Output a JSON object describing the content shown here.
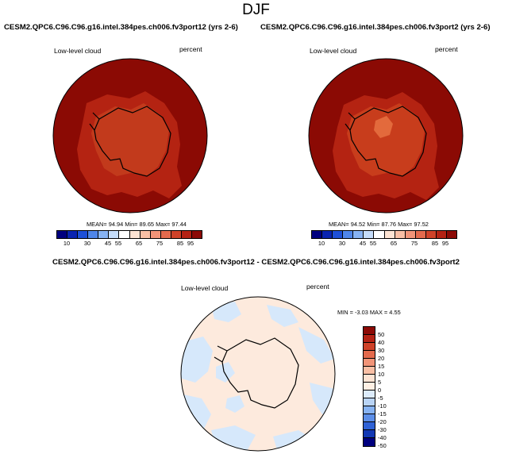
{
  "title": "DJF",
  "panels": [
    {
      "title": "CESM2.QPC6.C96.C96.g16.intel.384pes.ch006.fv3port12 (yrs 2-6)",
      "variable": "Low-level cloud",
      "units": "percent",
      "stats": "MEAN=  94.94  Min=  89.65  Max=  97.44"
    },
    {
      "title": "CESM2.QPC6.C96.C96.g16.intel.384pes.ch006.fv3port2 (yrs 2-6)",
      "variable": "Low-level cloud",
      "units": "percent",
      "stats": "MEAN=  94.52  Min=  87.76  Max=  97.52"
    },
    {
      "title": "CESM2.QPC6.C96.C96.g16.intel.384pes.ch006.fv3port12 - CESM2.QPC6.C96.C96.g16.intel.384pes.ch006.fv3port2",
      "variable": "Low-level cloud",
      "units": "percent",
      "stats": "MIN = -3.03 MAX =  4.55"
    }
  ],
  "colorbar_top": {
    "labels": [
      "10",
      "30",
      "45",
      "55",
      "65",
      "75",
      "85",
      "95"
    ],
    "colors": [
      "#00007f",
      "#0a24b0",
      "#1e50d8",
      "#4f86ea",
      "#87b3f3",
      "#c4dcfa",
      "#ffffff",
      "#fde3d3",
      "#f9bfa5",
      "#f19478",
      "#e36a4d",
      "#cf4229",
      "#b42214",
      "#8c0a06"
    ]
  },
  "colorbar_diff": {
    "labels": [
      "50",
      "40",
      "30",
      "20",
      "15",
      "10",
      "5",
      "0",
      "-5",
      "-10",
      "-15",
      "-20",
      "-30",
      "-40",
      "-50"
    ],
    "colors": [
      "#8c0a06",
      "#b42214",
      "#cf4229",
      "#e36a4d",
      "#f19478",
      "#f9bfa5",
      "#fde3d3",
      "#fff0e4",
      "#dcebfb",
      "#b9d4f6",
      "#87b3f3",
      "#5c8ee8",
      "#2f62d6",
      "#1238b4",
      "#00007f"
    ]
  },
  "map_colors": {
    "outer_ocean": "#8b0a04",
    "inner_ring": "#b42312",
    "land": "#c83d1c",
    "high_spot": "#e36a3c",
    "diff_base": "#fdeadd",
    "diff_blue": "#d6e8fb"
  }
}
